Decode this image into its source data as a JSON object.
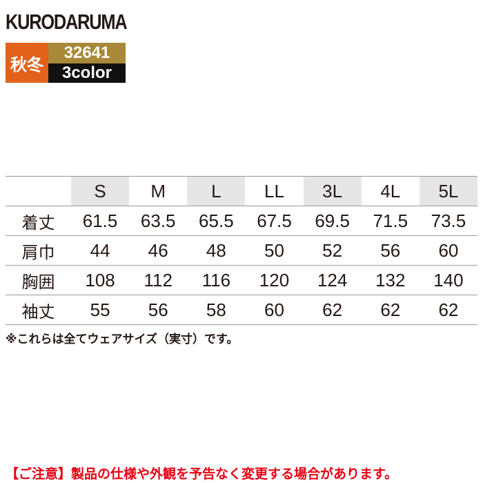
{
  "header": {
    "brand": "KURODARUMA",
    "season": "秋冬",
    "code": "32641",
    "colors": "3color"
  },
  "table": {
    "columns": [
      "S",
      "M",
      "L",
      "LL",
      "3L",
      "4L",
      "5L"
    ],
    "rows": [
      {
        "label": "着丈",
        "values": [
          61.5,
          63.5,
          65.5,
          67.5,
          69.5,
          71.5,
          73.5
        ]
      },
      {
        "label": "肩巾",
        "values": [
          44,
          46,
          48,
          50,
          52,
          56,
          60
        ]
      },
      {
        "label": "胸囲",
        "values": [
          108,
          112,
          116,
          120,
          124,
          132,
          140
        ]
      },
      {
        "label": "袖丈",
        "values": [
          55,
          56,
          58,
          60,
          62,
          62,
          62
        ]
      }
    ]
  },
  "note": "※これらは全てウェアサイズ（実寸）です。",
  "caution": "【ご注意】製品の仕様や外観を予告なく変更する場合があります。"
}
